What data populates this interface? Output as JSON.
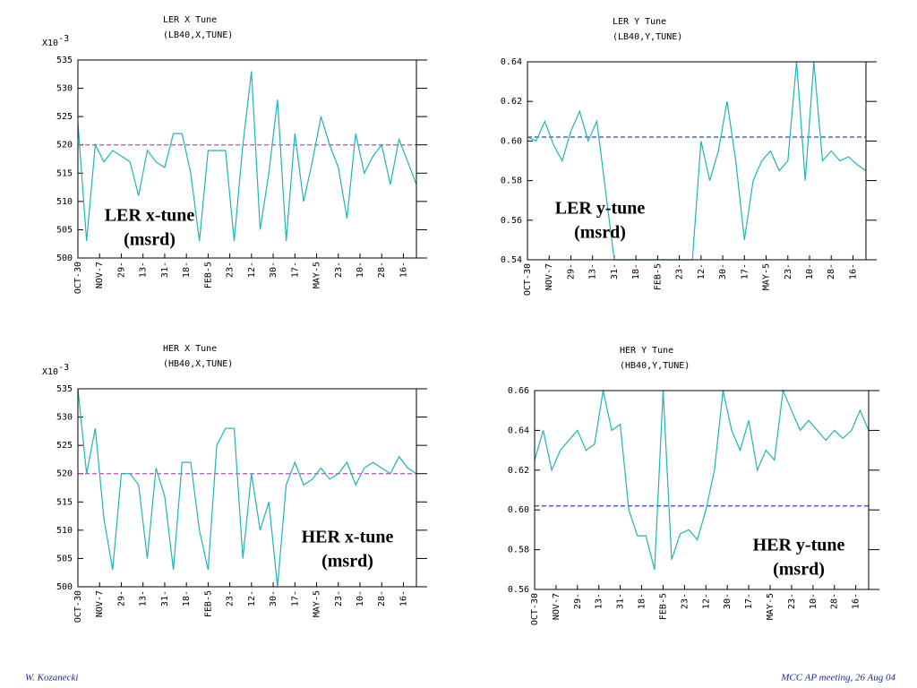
{
  "chart_data": [
    {
      "type": "line",
      "title": "LER X Tune",
      "subtitle": "(LB40,X,TUNE)",
      "annotation": [
        "LER x-tune",
        "(msrd)"
      ],
      "y_multiplier": "X10",
      "y_exponent": "-3",
      "ylim": [
        500,
        535
      ],
      "yticks": [
        500,
        505,
        510,
        515,
        520,
        525,
        530,
        535
      ],
      "xlim": [
        0,
        312
      ],
      "xticks": [
        {
          "value": 0,
          "label": "OCT-30"
        },
        {
          "value": 20,
          "label": "NOV-7"
        },
        {
          "value": 40,
          "label": "29-"
        },
        {
          "value": 60,
          "label": "13-"
        },
        {
          "value": 80,
          "label": "31-"
        },
        {
          "value": 100,
          "label": "18-"
        },
        {
          "value": 120,
          "label": "FEB-5"
        },
        {
          "value": 140,
          "label": "23-"
        },
        {
          "value": 160,
          "label": "12-"
        },
        {
          "value": 180,
          "label": "30-"
        },
        {
          "value": 200,
          "label": "17-"
        },
        {
          "value": 220,
          "label": "MAY-5"
        },
        {
          "value": 240,
          "label": "23-"
        },
        {
          "value": 260,
          "label": "10-"
        },
        {
          "value": 280,
          "label": "28-"
        },
        {
          "value": 300,
          "label": "16-"
        }
      ],
      "reference_line": {
        "value": 520,
        "color": "#cc44cc"
      },
      "series": [
        {
          "color": "#1fb5b5",
          "x": [
            0,
            8,
            16,
            24,
            32,
            40,
            48,
            56,
            64,
            72,
            80,
            88,
            96,
            104,
            112,
            120,
            128,
            136,
            144,
            152,
            160,
            168,
            176,
            184,
            192,
            200,
            208,
            216,
            224,
            232,
            240,
            248,
            256,
            264,
            272,
            280,
            288,
            296,
            304,
            312
          ],
          "values": [
            524,
            503,
            520,
            517,
            519,
            518,
            517,
            511,
            519,
            517,
            516,
            522,
            522,
            515,
            503,
            519,
            519,
            519,
            503,
            520,
            533,
            505,
            515,
            528,
            503,
            522,
            510,
            517,
            525,
            520,
            516,
            507,
            522,
            515,
            518,
            520,
            513,
            521,
            517,
            513
          ]
        }
      ]
    },
    {
      "type": "line",
      "title": "LER Y Tune",
      "subtitle": "(LB40,Y,TUNE)",
      "annotation": [
        "LER y-tune",
        "(msrd)"
      ],
      "ylim": [
        0.54,
        0.64
      ],
      "yticks": [
        0.54,
        0.56,
        0.58,
        {
          "value": 0.6,
          "label": "0.60"
        },
        0.62,
        0.64
      ],
      "xlim": [
        0,
        312
      ],
      "xticks": [
        {
          "value": 0,
          "label": "OCT-30"
        },
        {
          "value": 20,
          "label": "NOV-7"
        },
        {
          "value": 40,
          "label": "29-"
        },
        {
          "value": 60,
          "label": "13-"
        },
        {
          "value": 80,
          "label": "31-"
        },
        {
          "value": 100,
          "label": "18-"
        },
        {
          "value": 120,
          "label": "FEB-5"
        },
        {
          "value": 140,
          "label": "23-"
        },
        {
          "value": 160,
          "label": "12-"
        },
        {
          "value": 180,
          "label": "30-"
        },
        {
          "value": 200,
          "label": "17-"
        },
        {
          "value": 220,
          "label": "MAY-5"
        },
        {
          "value": 240,
          "label": "23-"
        },
        {
          "value": 260,
          "label": "10-"
        },
        {
          "value": 280,
          "label": "28-"
        },
        {
          "value": 300,
          "label": "16-"
        }
      ],
      "reference_line": {
        "value": 0.602,
        "color": "#2244dd"
      },
      "series": [
        {
          "color": "#1fb5b5",
          "x": [
            0,
            8,
            16,
            24,
            32,
            40,
            48,
            56,
            64,
            72,
            80,
            88,
            96,
            104,
            112,
            120,
            128,
            136,
            144,
            152,
            160,
            168,
            176,
            184,
            192,
            200,
            208,
            216,
            224,
            232,
            240,
            248,
            256,
            264,
            272,
            280,
            288,
            296,
            304,
            312
          ],
          "values": [
            0.602,
            0.6,
            0.61,
            0.598,
            0.59,
            0.605,
            0.615,
            0.6,
            0.61,
            0.575,
            0.54,
            0.54,
            0.54,
            0.54,
            0.54,
            0.54,
            0.54,
            0.54,
            0.54,
            0.54,
            0.6,
            0.58,
            0.595,
            0.62,
            0.59,
            0.55,
            0.58,
            0.59,
            0.595,
            0.585,
            0.59,
            0.64,
            0.58,
            0.64,
            0.59,
            0.595,
            0.59,
            0.592,
            0.588,
            0.585
          ]
        }
      ]
    },
    {
      "type": "line",
      "title": "HER X Tune",
      "subtitle": "(HB40,X,TUNE)",
      "annotation": [
        "HER x-tune",
        "(msrd)"
      ],
      "y_multiplier": "X10",
      "y_exponent": "-3",
      "ylim": [
        500,
        535
      ],
      "yticks": [
        500,
        505,
        510,
        515,
        520,
        525,
        530,
        535
      ],
      "xlim": [
        0,
        312
      ],
      "xticks": [
        {
          "value": 0,
          "label": "OCT-30"
        },
        {
          "value": 20,
          "label": "NOV-7"
        },
        {
          "value": 40,
          "label": "29-"
        },
        {
          "value": 60,
          "label": "13-"
        },
        {
          "value": 80,
          "label": "31-"
        },
        {
          "value": 100,
          "label": "18-"
        },
        {
          "value": 120,
          "label": "FEB-5"
        },
        {
          "value": 140,
          "label": "23-"
        },
        {
          "value": 160,
          "label": "12-"
        },
        {
          "value": 180,
          "label": "30-"
        },
        {
          "value": 200,
          "label": "17-"
        },
        {
          "value": 220,
          "label": "MAY-5"
        },
        {
          "value": 240,
          "label": "23-"
        },
        {
          "value": 260,
          "label": "10-"
        },
        {
          "value": 280,
          "label": "28-"
        },
        {
          "value": 300,
          "label": "16-"
        }
      ],
      "reference_line": {
        "value": 520,
        "color": "#cc44cc"
      },
      "series": [
        {
          "color": "#1fb5b5",
          "x": [
            0,
            8,
            16,
            24,
            32,
            40,
            48,
            56,
            64,
            72,
            80,
            88,
            96,
            104,
            112,
            120,
            128,
            136,
            144,
            152,
            160,
            168,
            176,
            184,
            192,
            200,
            208,
            216,
            224,
            232,
            240,
            248,
            256,
            264,
            272,
            280,
            288,
            296,
            304,
            312
          ],
          "values": [
            535,
            520,
            528,
            512,
            503,
            520,
            520,
            518,
            505,
            521,
            516,
            503,
            522,
            522,
            510,
            503,
            525,
            528,
            528,
            505,
            520,
            510,
            515,
            500,
            518,
            522,
            518,
            519,
            521,
            519,
            520,
            522,
            518,
            521,
            522,
            521,
            520,
            523,
            521,
            520
          ]
        }
      ]
    },
    {
      "type": "line",
      "title": "HER Y Tune",
      "subtitle": "(HB40,Y,TUNE)",
      "annotation": [
        "HER y-tune",
        "(msrd)"
      ],
      "ylim": [
        0.56,
        0.66
      ],
      "yticks": [
        0.56,
        0.58,
        {
          "value": 0.6,
          "label": "0.60"
        },
        0.62,
        0.64,
        0.66
      ],
      "xlim": [
        0,
        312
      ],
      "xticks": [
        {
          "value": 0,
          "label": "OCT-30"
        },
        {
          "value": 20,
          "label": "NOV-7"
        },
        {
          "value": 40,
          "label": "29-"
        },
        {
          "value": 60,
          "label": "13-"
        },
        {
          "value": 80,
          "label": "31-"
        },
        {
          "value": 100,
          "label": "18-"
        },
        {
          "value": 120,
          "label": "FEB-5"
        },
        {
          "value": 140,
          "label": "23-"
        },
        {
          "value": 160,
          "label": "12-"
        },
        {
          "value": 180,
          "label": "30-"
        },
        {
          "value": 200,
          "label": "17-"
        },
        {
          "value": 220,
          "label": "MAY-5"
        },
        {
          "value": 240,
          "label": "23-"
        },
        {
          "value": 260,
          "label": "10-"
        },
        {
          "value": 280,
          "label": "28-"
        },
        {
          "value": 300,
          "label": "16-"
        }
      ],
      "reference_line": {
        "value": 0.602,
        "color": "#2244dd"
      },
      "series": [
        {
          "color": "#1fb5b5",
          "x": [
            0,
            8,
            16,
            24,
            32,
            40,
            48,
            56,
            64,
            72,
            80,
            88,
            96,
            104,
            112,
            120,
            128,
            136,
            144,
            152,
            160,
            168,
            176,
            184,
            192,
            200,
            208,
            216,
            224,
            232,
            240,
            248,
            256,
            264,
            272,
            280,
            288,
            296,
            304,
            312
          ],
          "values": [
            0.625,
            0.64,
            0.62,
            0.63,
            0.635,
            0.64,
            0.63,
            0.633,
            0.66,
            0.64,
            0.643,
            0.6,
            0.587,
            0.587,
            0.57,
            0.66,
            0.575,
            0.588,
            0.59,
            0.585,
            0.6,
            0.62,
            0.66,
            0.64,
            0.63,
            0.645,
            0.62,
            0.63,
            0.625,
            0.66,
            0.65,
            0.64,
            0.645,
            0.64,
            0.635,
            0.64,
            0.636,
            0.64,
            0.65,
            0.64
          ]
        }
      ]
    }
  ],
  "footer": {
    "author": "W. Kozanecki",
    "meeting": "MCC AP meeting, 26 Aug 04"
  }
}
